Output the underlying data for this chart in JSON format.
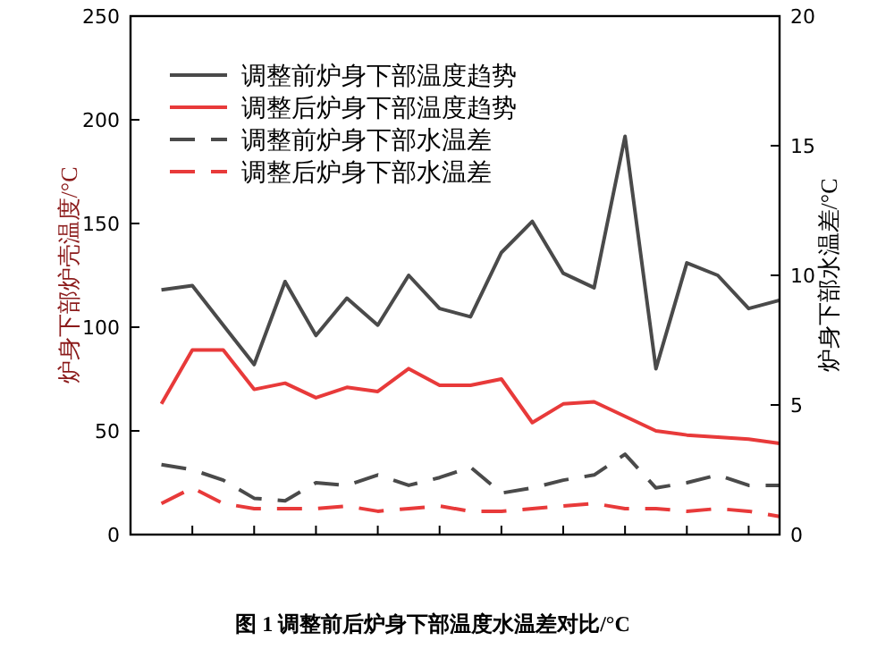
{
  "chart_data": {
    "type": "line",
    "title": "图 1  调整前后炉身下部温度水温差对比/°C",
    "ylabel": "炉身下部炉壳温度/°C",
    "y2label": "炉身下部水温差/°C",
    "categories": [
      null,
      null,
      null,
      null,
      null,
      null,
      null,
      null,
      null,
      null,
      null,
      null,
      null,
      null,
      null,
      null,
      null,
      null,
      null,
      null,
      null
    ],
    "ylim": [
      0,
      250
    ],
    "yticks": [
      0,
      50,
      100,
      150,
      200,
      250
    ],
    "y2lim": [
      0,
      20
    ],
    "y2ticks": [
      0,
      5,
      10,
      15,
      20
    ],
    "legend": "top left",
    "marker": "none",
    "grid": false,
    "series": [
      {
        "name": "调整前炉身下部温度趋势",
        "color": "#4a4a4a",
        "line_style": "solid",
        "values": [
          118,
          120,
          101,
          82,
          122,
          96,
          114,
          101,
          125,
          109,
          105,
          136,
          151,
          126,
          119,
          192,
          80,
          131,
          125,
          109,
          113
        ]
      },
      {
        "name": "调整后炉身下部温度趋势",
        "color": "#e83a3a",
        "line_style": "solid",
        "values": [
          63,
          89,
          89,
          70,
          73,
          66,
          71,
          69,
          80,
          72,
          72,
          75,
          54,
          63,
          64,
          57,
          50,
          48,
          47,
          46,
          44
        ]
      },
      {
        "name": "调整前炉身下部水温差",
        "color": "#4a4a4a",
        "line_style": "dashed",
        "axis": "y2",
        "values": [
          2.7,
          2.5,
          2.1,
          1.4,
          1.3,
          2.0,
          1.9,
          2.3,
          1.9,
          2.2,
          2.6,
          1.6,
          1.8,
          2.1,
          2.3,
          3.1,
          1.8,
          2.0,
          2.3,
          1.9,
          1.9
        ]
      },
      {
        "name": "调整后炉身下部水温差",
        "color": "#e83a3a",
        "line_style": "dashed",
        "axis": "y2",
        "values": [
          1.2,
          1.8,
          1.2,
          1.0,
          1.0,
          1.0,
          1.1,
          0.9,
          1.0,
          1.1,
          0.9,
          0.9,
          1.0,
          1.1,
          1.2,
          1.0,
          1.0,
          0.9,
          1.0,
          0.9,
          0.7
        ]
      }
    ]
  }
}
